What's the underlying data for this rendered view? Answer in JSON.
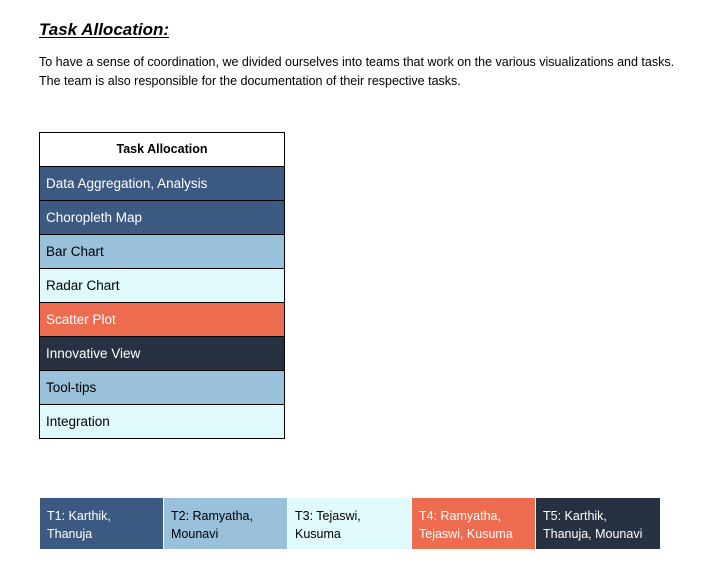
{
  "heading": "Task Allocation:",
  "paragraph": "To have a sense of coordination, we divided ourselves into teams that work on the various visualizations and tasks. The team is also responsible for the documentation of their respective tasks.",
  "task_table": {
    "header": "Task Allocation",
    "rows": [
      {
        "label": "Data Aggregation, Analysis",
        "bg": "#3c5a81",
        "fg": "#ffffff"
      },
      {
        "label": "Choropleth Map",
        "bg": "#3c5a81",
        "fg": "#ffffff"
      },
      {
        "label": "Bar Chart",
        "bg": "#99c1dc",
        "fg": "#000000"
      },
      {
        "label": "Radar Chart",
        "bg": "#e0fafc",
        "fg": "#000000"
      },
      {
        "label": "Scatter Plot",
        "bg": "#ed6b4f",
        "fg": "#ffffff"
      },
      {
        "label": "Innovative View",
        "bg": "#283142",
        "fg": "#ffffff"
      },
      {
        "label": "Tool-tips",
        "bg": "#99c1dc",
        "fg": "#000000"
      },
      {
        "label": "Integration",
        "bg": "#e0fafc",
        "fg": "#000000"
      }
    ]
  },
  "teams": [
    {
      "line1": "T1: Karthik,",
      "line2": "Thanuja",
      "bg": "#3c5a81",
      "fg": "#ffffff"
    },
    {
      "line1": "T2: Ramyatha,",
      "line2": "Mounavi",
      "bg": "#99c1dc",
      "fg": "#000000"
    },
    {
      "line1": "T3: Tejaswi,",
      "line2": "Kusuma",
      "bg": "#e0fafc",
      "fg": "#000000"
    },
    {
      "line1": "T4: Ramyatha,",
      "line2": "Tejaswi, Kusuma",
      "bg": "#ed6b4f",
      "fg": "#ffffff"
    },
    {
      "line1": "T5: Karthik,",
      "line2": "Thanuja, Mounavi",
      "bg": "#283142",
      "fg": "#ffffff"
    }
  ]
}
